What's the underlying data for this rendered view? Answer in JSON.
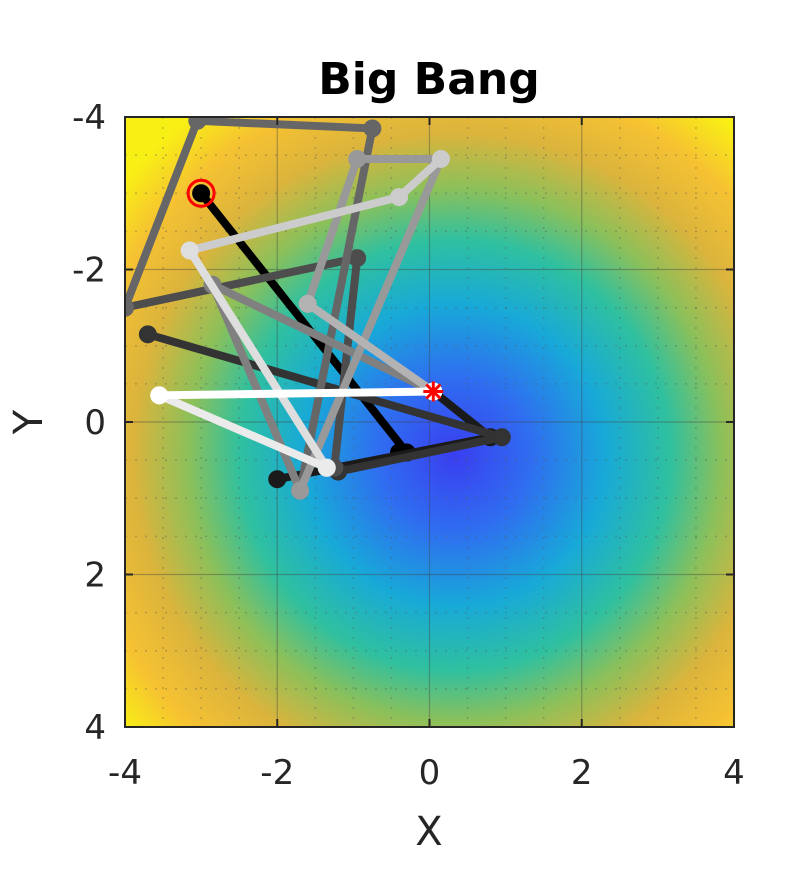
{
  "chart_data": {
    "type": "line",
    "title": "Big Bang",
    "xlabel": "X",
    "ylabel": "Y",
    "xlim": [
      -4,
      4
    ],
    "ylim": [
      -4,
      4
    ],
    "y_axis_reversed": true,
    "grid": true,
    "background": "heatmap",
    "background_description": "radial colormap (parula-like): blue at center near (0.3, 0.3) rising through cyan/green to yellow at corners",
    "xticks": [
      "-4",
      "-2",
      "0",
      "2",
      "4"
    ],
    "yticks": [
      "-4",
      "-2",
      "0",
      "2",
      "4"
    ],
    "start_marker": {
      "x": -3.0,
      "y": -3.0,
      "color": "#ff0000"
    },
    "best_marker": {
      "x": 0.05,
      "y": -0.4,
      "color": "#ff0000",
      "symbol": "*"
    },
    "series": [
      {
        "color": "#000000",
        "points": [
          [
            -3.0,
            -3.0
          ],
          [
            -0.3,
            0.4
          ],
          [
            -0.4,
            0.4
          ]
        ]
      },
      {
        "color": "#1a1a1a",
        "points": [
          [
            -2.0,
            0.75
          ],
          [
            0.8,
            0.2
          ],
          [
            0.05,
            -0.4
          ]
        ]
      },
      {
        "color": "#333333",
        "points": [
          [
            -3.7,
            -1.15
          ],
          [
            0.95,
            0.2
          ],
          [
            -1.2,
            0.65
          ]
        ]
      },
      {
        "color": "#4d4d4d",
        "points": [
          [
            -4.0,
            -1.5
          ],
          [
            -0.95,
            -2.15
          ],
          [
            -1.25,
            0.6
          ]
        ]
      },
      {
        "color": "#666666",
        "points": [
          [
            -4.0,
            -1.5
          ],
          [
            -3.05,
            -3.95
          ],
          [
            -0.75,
            -3.85
          ],
          [
            -1.7,
            0.9
          ]
        ]
      },
      {
        "color": "#808080",
        "points": [
          [
            -1.7,
            0.9
          ],
          [
            -2.85,
            -1.8
          ],
          [
            0.05,
            -0.4
          ]
        ]
      },
      {
        "color": "#999999",
        "points": [
          [
            -1.6,
            -1.55
          ],
          [
            -0.95,
            -3.45
          ],
          [
            0.15,
            -3.45
          ],
          [
            -1.7,
            0.9
          ]
        ]
      },
      {
        "color": "#b3b3b3",
        "points": [
          [
            -1.6,
            -1.55
          ],
          [
            0.05,
            -0.4
          ]
        ]
      },
      {
        "color": "#cccccc",
        "points": [
          [
            -3.15,
            -2.25
          ],
          [
            -0.4,
            -2.95
          ],
          [
            0.15,
            -3.45
          ]
        ]
      },
      {
        "color": "#dedede",
        "points": [
          [
            -3.15,
            -2.25
          ],
          [
            -1.35,
            0.6
          ]
        ]
      },
      {
        "color": "#ebebeb",
        "points": [
          [
            -3.55,
            -0.35
          ],
          [
            -1.35,
            0.6
          ]
        ]
      },
      {
        "color": "#ffffff",
        "points": [
          [
            -3.55,
            -0.35
          ],
          [
            0.05,
            -0.4
          ]
        ]
      }
    ]
  }
}
